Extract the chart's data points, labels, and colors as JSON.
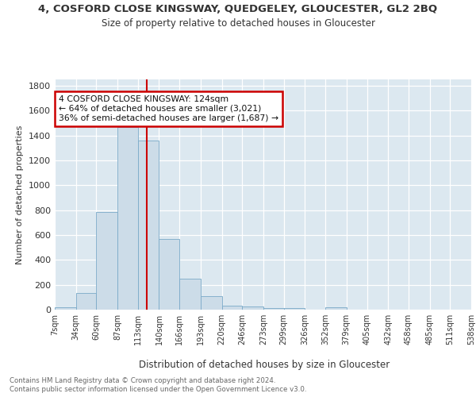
{
  "title": "4, COSFORD CLOSE KINGSWAY, QUEDGELEY, GLOUCESTER, GL2 2BQ",
  "subtitle": "Size of property relative to detached houses in Gloucester",
  "xlabel": "Distribution of detached houses by size in Gloucester",
  "ylabel": "Number of detached properties",
  "bar_color": "#ccdce8",
  "bar_edge_color": "#7aaac8",
  "background_color": "#dce8f0",
  "bin_labels": [
    "7sqm",
    "34sqm",
    "60sqm",
    "87sqm",
    "113sqm",
    "140sqm",
    "166sqm",
    "193sqm",
    "220sqm",
    "246sqm",
    "273sqm",
    "299sqm",
    "326sqm",
    "352sqm",
    "379sqm",
    "405sqm",
    "432sqm",
    "458sqm",
    "485sqm",
    "511sqm",
    "538sqm"
  ],
  "bar_heights": [
    20,
    135,
    785,
    1470,
    1360,
    565,
    248,
    110,
    35,
    25,
    15,
    15,
    0,
    20,
    0,
    0,
    0,
    0,
    0,
    0
  ],
  "bin_edges": [
    7,
    34,
    60,
    87,
    113,
    140,
    166,
    193,
    220,
    246,
    273,
    299,
    326,
    352,
    379,
    405,
    432,
    458,
    485,
    511,
    538
  ],
  "vline_x": 124,
  "annotation_text": "4 COSFORD CLOSE KINGSWAY: 124sqm\n← 64% of detached houses are smaller (3,021)\n36% of semi-detached houses are larger (1,687) →",
  "annotation_box_color": "#ffffff",
  "annotation_box_edge": "#cc0000",
  "vline_color": "#cc0000",
  "ylim": [
    0,
    1850
  ],
  "yticks": [
    0,
    200,
    400,
    600,
    800,
    1000,
    1200,
    1400,
    1600,
    1800
  ],
  "footnote1": "Contains HM Land Registry data © Crown copyright and database right 2024.",
  "footnote2": "Contains public sector information licensed under the Open Government Licence v3.0."
}
